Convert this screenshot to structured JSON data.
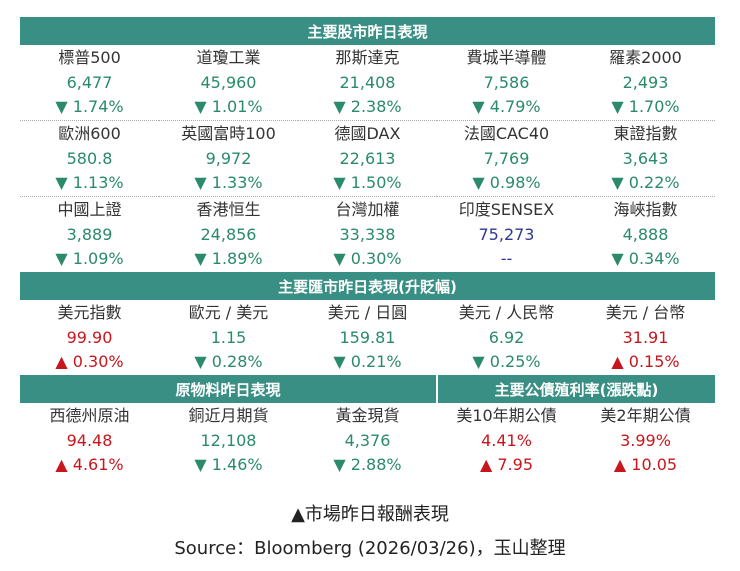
{
  "stocks": {
    "title": "主要股市昨日表現",
    "rows": [
      [
        {
          "name": "標普500",
          "value": "6,477",
          "change": "▼ 1.74%",
          "color": "#2a8a6a"
        },
        {
          "name": "道瓊工業",
          "value": "45,960",
          "change": "▼ 1.01%",
          "color": "#2a8a6a"
        },
        {
          "name": "那斯達克",
          "value": "21,408",
          "change": "▼ 2.38%",
          "color": "#2a8a6a"
        },
        {
          "name": "費城半導體",
          "value": "7,586",
          "change": "▼ 4.79%",
          "color": "#2a8a6a"
        },
        {
          "name": "羅素2000",
          "value": "2,493",
          "change": "▼ 1.70%",
          "color": "#2a8a6a"
        }
      ],
      [
        {
          "name": "歐洲600",
          "value": "580.8",
          "change": "▼ 1.13%",
          "color": "#2a8a6a"
        },
        {
          "name": "英國富時100",
          "value": "9,972",
          "change": "▼ 1.33%",
          "color": "#2a8a6a"
        },
        {
          "name": "德國DAX",
          "value": "22,613",
          "change": "▼ 1.50%",
          "color": "#2a8a6a"
        },
        {
          "name": "法國CAC40",
          "value": "7,769",
          "change": "▼ 0.98%",
          "color": "#2a8a6a"
        },
        {
          "name": "東證指數",
          "value": "3,643",
          "change": "▼ 0.22%",
          "color": "#2a8a6a"
        }
      ],
      [
        {
          "name": "中國上證",
          "value": "3,889",
          "change": "▼ 1.09%",
          "color": "#2a8a6a"
        },
        {
          "name": "香港恒生",
          "value": "24,856",
          "change": "▼ 1.89%",
          "color": "#2a8a6a"
        },
        {
          "name": "台灣加權",
          "value": "33,338",
          "change": "▼ 0.30%",
          "color": "#2a8a6a"
        },
        {
          "name": "印度SENSEX",
          "value": "75,273",
          "change": "--",
          "color": "#2e3a8f"
        },
        {
          "name": "海峽指數",
          "value": "4,888",
          "change": "▼ 0.34%",
          "color": "#2a8a6a"
        }
      ]
    ]
  },
  "fx": {
    "title": "主要匯市昨日表現(升貶幅)",
    "rows": [
      [
        {
          "name": "美元指數",
          "value": "99.90",
          "change": "▲ 0.30%",
          "color": "#c8161d"
        },
        {
          "name": "歐元 / 美元",
          "value": "1.15",
          "change": "▼ 0.28%",
          "color": "#2a8a6a"
        },
        {
          "name": "美元 / 日圓",
          "value": "159.81",
          "change": "▼ 0.21%",
          "color": "#2a8a6a"
        },
        {
          "name": "美元 / 人民幣",
          "value": "6.92",
          "change": "▼ 0.25%",
          "color": "#2a8a6a"
        },
        {
          "name": "美元 / 台幣",
          "value": "31.91",
          "change": "▲ 0.15%",
          "color": "#c8161d"
        }
      ]
    ]
  },
  "commodities": {
    "title": "原物料昨日表現",
    "items": [
      {
        "name": "西德州原油",
        "value": "94.48",
        "change": "▲ 4.61%",
        "color": "#c8161d"
      },
      {
        "name": "銅近月期貨",
        "value": "12,108",
        "change": "▼ 1.46%",
        "color": "#2a8a6a"
      },
      {
        "name": "黃金現貨",
        "value": "4,376",
        "change": "▼ 2.88%",
        "color": "#2a8a6a"
      }
    ]
  },
  "bonds": {
    "title": "主要公債殖利率(漲跌點)",
    "items": [
      {
        "name": "美10年期公債",
        "value": "4.41%",
        "change": "▲ 7.95",
        "color": "#c8161d"
      },
      {
        "name": "美2年期公債",
        "value": "3.99%",
        "change": "▲ 10.05",
        "color": "#c8161d"
      }
    ]
  },
  "caption": "▲市場昨日報酬表現",
  "source": "Source：Bloomberg (2026/03/26)，玉山整理"
}
